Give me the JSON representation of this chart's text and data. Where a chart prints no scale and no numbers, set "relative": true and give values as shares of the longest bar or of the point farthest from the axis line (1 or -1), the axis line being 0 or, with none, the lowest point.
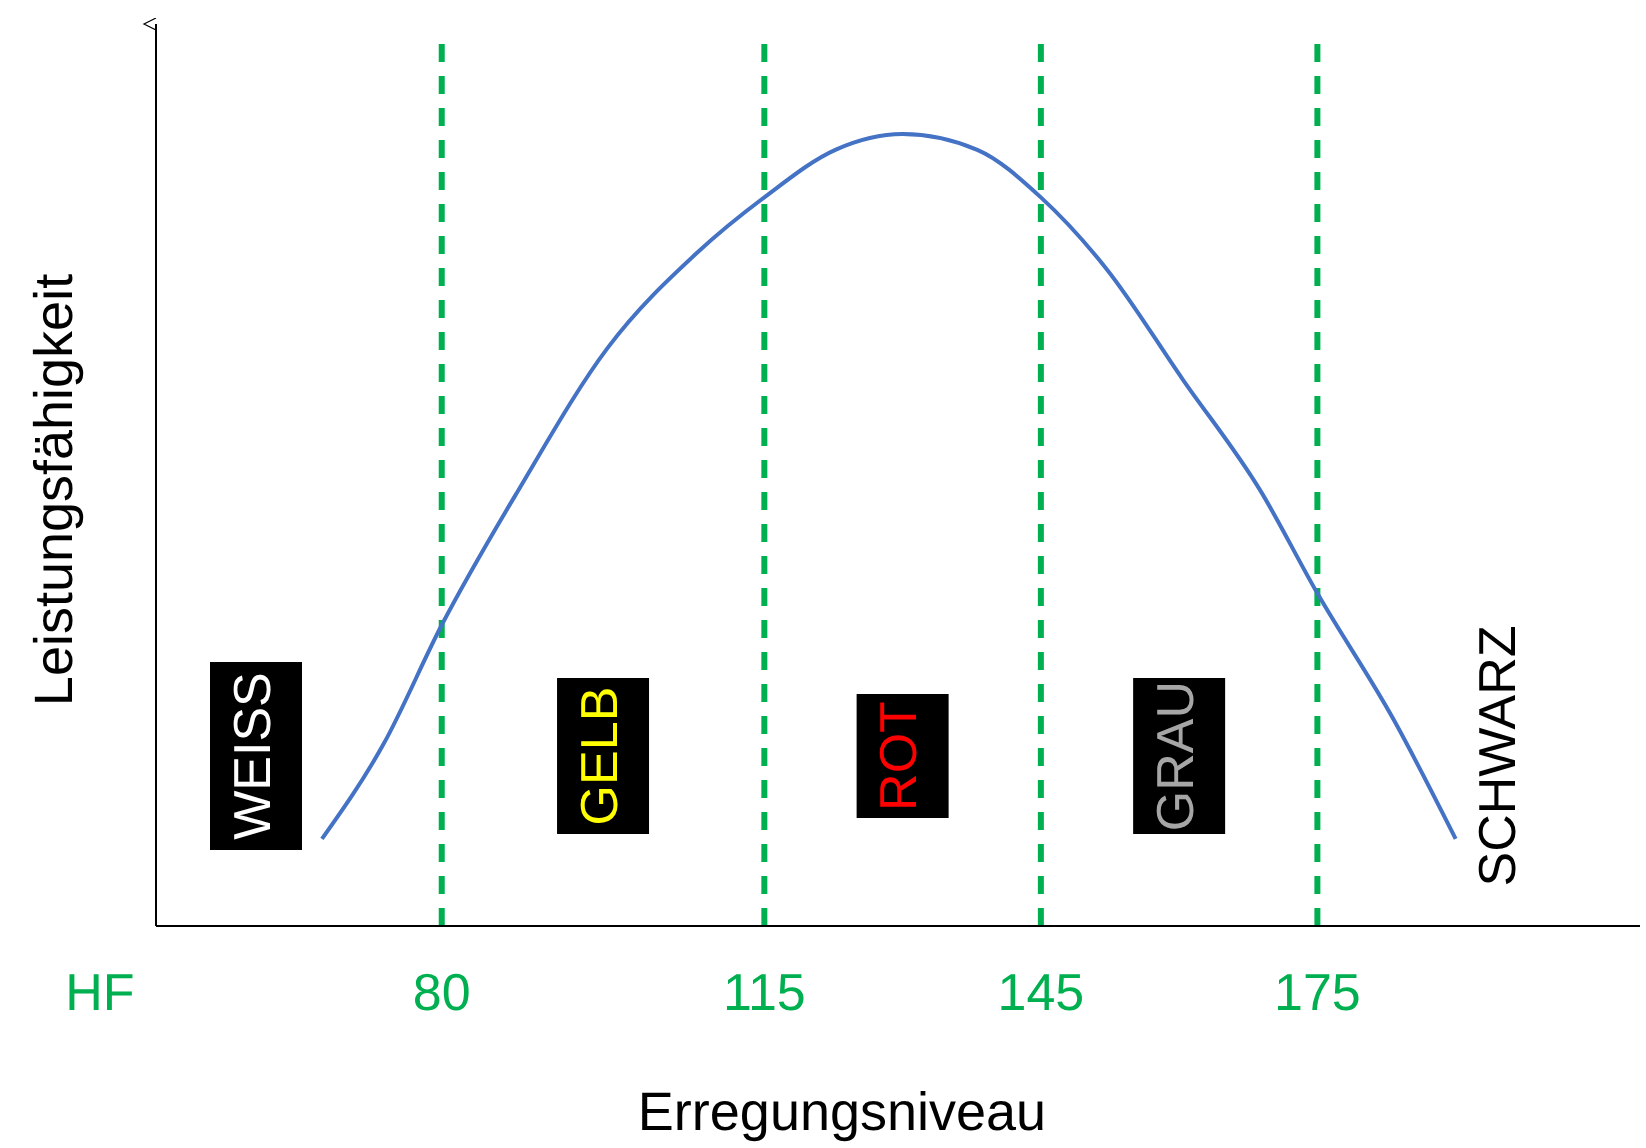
{
  "chart_data": {
    "type": "line",
    "relative": true,
    "xlabel": "Erregungsniveau",
    "ylabel": "Leistungsfähigkeit",
    "xlim": [
      49,
      210
    ],
    "xticks": [
      80,
      115,
      145,
      175
    ],
    "x": [
      67,
      73.7,
      80,
      88.3,
      98,
      107.7,
      115,
      122.7,
      130,
      138.1,
      145,
      152.1,
      160.4,
      168.8,
      175,
      183.3,
      190
    ],
    "series": [
      {
        "color": "#4472c4",
        "values": [
          0.11,
          0.23,
          0.38,
          0.55,
          0.73,
          0.85,
          0.92,
          0.98,
          1,
          0.98,
          0.92,
          0.83,
          0.69,
          0.55,
          0.42,
          0.26,
          0.11
        ]
      }
    ],
    "ref_lines": [
      {
        "axis": "x",
        "value": 80,
        "color": "#00b050",
        "line_style": "dashed"
      },
      {
        "axis": "x",
        "value": 115,
        "color": "#00b050",
        "line_style": "dashed"
      },
      {
        "axis": "x",
        "value": 145,
        "color": "#00b050",
        "line_style": "dashed"
      },
      {
        "axis": "x",
        "value": 175,
        "color": "#00b050",
        "line_style": "dashed"
      }
    ],
    "annotations": [
      "HF",
      "WEISS",
      "GELB",
      "ROT",
      "GRAU",
      "SCHWARZ"
    ]
  }
}
